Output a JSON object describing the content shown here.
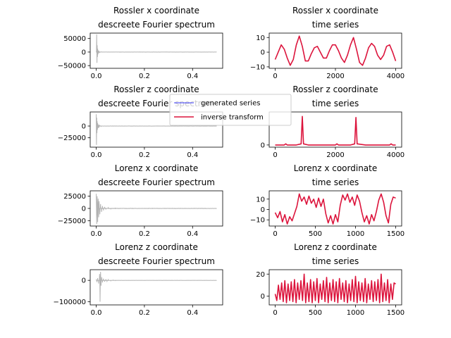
{
  "chart_data": [
    {
      "type": "line",
      "panel": "spectrum",
      "title_lines": [
        "Rossler x coordinate",
        "descreete Fourier spectrum"
      ],
      "xlim": [
        -0.025,
        0.525
      ],
      "ylim": [
        -60000,
        70000
      ],
      "xticks": [
        0.0,
        0.2,
        0.4
      ],
      "xtick_labels": [
        "0.0",
        "0.2",
        "0.4"
      ],
      "yticks": [
        50000,
        0,
        -50000
      ],
      "ytick_labels": [
        "50000",
        "0",
        "−50000"
      ],
      "series": [
        {
          "name": "generated series",
          "color": "#0000ff",
          "spikes": [
            [
              0.0,
              1500
            ],
            [
              0.001,
              -1200
            ],
            [
              0.002,
              65000
            ],
            [
              0.003,
              -40000
            ],
            [
              0.004,
              25000
            ],
            [
              0.005,
              -18000
            ],
            [
              0.006,
              12000
            ],
            [
              0.007,
              -9000
            ],
            [
              0.008,
              6000
            ],
            [
              0.01,
              -4000
            ],
            [
              0.012,
              2500
            ],
            [
              0.015,
              -1500
            ],
            [
              0.02,
              800
            ]
          ],
          "tail_amplitude": 200
        }
      ]
    },
    {
      "type": "line",
      "panel": "timeseries",
      "title_lines": [
        "Rossler x coordinate",
        "time series"
      ],
      "xlim": [
        -200,
        4200
      ],
      "ylim": [
        -11,
        13
      ],
      "xticks": [
        0,
        2000,
        4000
      ],
      "xtick_labels": [
        "0",
        "2000",
        "4000"
      ],
      "yticks": [
        10,
        0,
        -10
      ],
      "ytick_labels": [
        "10",
        "0",
        "−10"
      ],
      "series": [
        {
          "name": "inverse transform",
          "color": "#dc143c",
          "x": [
            0,
            100,
            200,
            300,
            400,
            500,
            600,
            700,
            800,
            900,
            1000,
            1100,
            1200,
            1300,
            1400,
            1500,
            1600,
            1700,
            1800,
            1900,
            2000,
            2100,
            2200,
            2300,
            2400,
            2500,
            2600,
            2700,
            2800,
            2900,
            3000,
            3100,
            3200,
            3300,
            3400,
            3500,
            3600,
            3700,
            3800,
            3900,
            4000
          ],
          "y": [
            -5,
            0,
            5,
            2,
            -4,
            -9,
            -5,
            5,
            11,
            4,
            -6,
            -6,
            -1,
            3,
            4,
            0,
            -4,
            -4,
            1,
            5,
            5,
            1,
            -4,
            -7,
            -2,
            5,
            10,
            2,
            -7,
            -9,
            -4,
            3,
            6,
            4,
            -2,
            -5,
            -2,
            4,
            5,
            0,
            -6
          ]
        }
      ]
    },
    {
      "type": "line",
      "panel": "spectrum",
      "title_lines": [
        "Rossler z coordinate",
        "descreete Fourier spectrum"
      ],
      "xlim": [
        -0.025,
        0.525
      ],
      "ylim": [
        -45000,
        30000
      ],
      "xticks": [
        0.0,
        0.2,
        0.4
      ],
      "xtick_labels": [
        "0.0",
        "0.2",
        "0.4"
      ],
      "yticks": [
        0,
        -25000
      ],
      "ytick_labels": [
        "0",
        "−25000"
      ],
      "series": [
        {
          "name": "generated series",
          "color": "#0000ff",
          "spikes": [
            [
              0.0,
              25000
            ],
            [
              0.001,
              -40000
            ],
            [
              0.002,
              18000
            ],
            [
              0.003,
              -15000
            ],
            [
              0.004,
              10000
            ],
            [
              0.005,
              -8000
            ],
            [
              0.006,
              6000
            ],
            [
              0.008,
              -4000
            ],
            [
              0.01,
              3000
            ],
            [
              0.012,
              -2000
            ],
            [
              0.015,
              1200
            ],
            [
              0.02,
              -700
            ]
          ],
          "tail_amplitude": 150
        }
      ]
    },
    {
      "type": "line",
      "panel": "timeseries",
      "title_lines": [
        "Rossler z coordinate",
        "time series"
      ],
      "xlim": [
        -200,
        4200
      ],
      "ylim": [
        -2,
        30
      ],
      "xticks": [
        0,
        2000,
        4000
      ],
      "xtick_labels": [
        "0",
        "2000",
        "4000"
      ],
      "yticks": [
        0
      ],
      "ytick_labels": [
        "0"
      ],
      "series": [
        {
          "name": "inverse transform",
          "color": "#dc143c",
          "x": [
            0,
            300,
            350,
            400,
            700,
            860,
            900,
            940,
            1100,
            2000,
            2050,
            2100,
            2500,
            2640,
            2680,
            2720,
            3000,
            3800,
            3850,
            3900,
            4000
          ],
          "y": [
            0,
            0,
            1,
            0,
            0,
            1,
            26,
            1,
            0,
            0,
            1,
            0,
            0,
            1,
            25,
            1,
            0,
            0,
            1,
            0,
            0
          ]
        }
      ]
    },
    {
      "type": "line",
      "panel": "spectrum",
      "title_lines": [
        "Lorenz x coordinate",
        "descreete Fourier spectrum"
      ],
      "xlim": [
        -0.025,
        0.525
      ],
      "ylim": [
        -36000,
        36000
      ],
      "xticks": [
        0.0,
        0.2,
        0.4
      ],
      "xtick_labels": [
        "0.0",
        "0.2",
        "0.4"
      ],
      "yticks": [
        25000,
        0,
        -25000
      ],
      "ytick_labels": [
        "25000",
        "0",
        "−25000"
      ],
      "series": [
        {
          "name": "generated series",
          "color": "#0000ff",
          "spikes": [
            [
              0.0,
              30000
            ],
            [
              0.002,
              -32000
            ],
            [
              0.004,
              25000
            ],
            [
              0.006,
              -28000
            ],
            [
              0.008,
              20000
            ],
            [
              0.01,
              -18000
            ],
            [
              0.012,
              15000
            ],
            [
              0.015,
              -12000
            ],
            [
              0.018,
              9000
            ],
            [
              0.022,
              -7000
            ],
            [
              0.026,
              5000
            ],
            [
              0.03,
              -4000
            ],
            [
              0.035,
              3000
            ],
            [
              0.04,
              -2000
            ],
            [
              0.05,
              1500
            ],
            [
              0.06,
              -1000
            ],
            [
              0.08,
              600
            ]
          ],
          "tail_amplitude": 250
        }
      ]
    },
    {
      "type": "line",
      "panel": "timeseries",
      "title_lines": [
        "Lorenz x coordinate",
        "time series"
      ],
      "xlim": [
        -75,
        1575
      ],
      "ylim": [
        -16,
        18
      ],
      "xticks": [
        0,
        500,
        1000,
        1500
      ],
      "xtick_labels": [
        "0",
        "500",
        "1000",
        "1500"
      ],
      "yticks": [
        10,
        0,
        -10
      ],
      "ytick_labels": [
        "10",
        "0",
        "−10"
      ],
      "series": [
        {
          "name": "inverse transform",
          "color": "#dc143c",
          "x": [
            0,
            30,
            60,
            90,
            120,
            150,
            180,
            210,
            240,
            270,
            300,
            330,
            360,
            390,
            420,
            450,
            480,
            510,
            540,
            570,
            600,
            630,
            660,
            690,
            720,
            750,
            780,
            810,
            840,
            870,
            900,
            930,
            960,
            990,
            1020,
            1050,
            1080,
            1110,
            1140,
            1170,
            1200,
            1230,
            1260,
            1290,
            1320,
            1350,
            1380,
            1410,
            1440,
            1470,
            1500
          ],
          "y": [
            -3,
            -8,
            -2,
            -12,
            -5,
            -14,
            -7,
            -11,
            -4,
            3,
            15,
            8,
            12,
            5,
            13,
            6,
            10,
            2,
            11,
            3,
            10,
            -4,
            -13,
            -6,
            -14,
            -5,
            -12,
            4,
            14,
            9,
            15,
            7,
            12,
            4,
            14,
            8,
            -3,
            -12,
            -6,
            -14,
            -5,
            -11,
            -2,
            9,
            15,
            7,
            -6,
            -13,
            5,
            12,
            11
          ]
        }
      ]
    },
    {
      "type": "line",
      "panel": "spectrum",
      "title_lines": [
        "Lorenz z coordinate",
        "descreete Fourier spectrum"
      ],
      "xlim": [
        -0.025,
        0.525
      ],
      "ylim": [
        -115000,
        50000
      ],
      "xticks": [
        0.0,
        0.2,
        0.4
      ],
      "xtick_labels": [
        "0.0",
        "0.2",
        "0.4"
      ],
      "yticks": [
        0,
        -100000
      ],
      "ytick_labels": [
        "0",
        "−100000"
      ],
      "series": [
        {
          "name": "generated series",
          "color": "#0000ff",
          "spikes": [
            [
              0.0,
              5000
            ],
            [
              0.003,
              -8000
            ],
            [
              0.006,
              10000
            ],
            [
              0.01,
              -15000
            ],
            [
              0.014,
              30000
            ],
            [
              0.016,
              -100000
            ],
            [
              0.018,
              40000
            ],
            [
              0.02,
              -25000
            ],
            [
              0.023,
              15000
            ],
            [
              0.026,
              -10000
            ],
            [
              0.03,
              8000
            ],
            [
              0.035,
              -6000
            ],
            [
              0.04,
              5000
            ],
            [
              0.045,
              -4000
            ],
            [
              0.05,
              3000
            ],
            [
              0.06,
              -2000
            ],
            [
              0.07,
              1500
            ],
            [
              0.08,
              -1000
            ]
          ],
          "tail_amplitude": 300
        }
      ]
    },
    {
      "type": "line",
      "panel": "timeseries",
      "title_lines": [
        "Lorenz z coordinate",
        "time series"
      ],
      "xlim": [
        -75,
        1575
      ],
      "ylim": [
        -8,
        24
      ],
      "xticks": [
        0,
        500,
        1000,
        1500
      ],
      "xtick_labels": [
        "0",
        "500",
        "1000",
        "1500"
      ],
      "yticks": [
        20,
        0
      ],
      "ytick_labels": [
        "20",
        "0"
      ],
      "series": [
        {
          "name": "inverse transform",
          "color": "#dc143c",
          "x": [
            0,
            20,
            40,
            60,
            80,
            100,
            120,
            140,
            160,
            180,
            200,
            220,
            240,
            260,
            280,
            300,
            320,
            340,
            360,
            380,
            400,
            420,
            440,
            460,
            480,
            500,
            520,
            540,
            560,
            580,
            600,
            620,
            640,
            660,
            680,
            700,
            720,
            740,
            760,
            780,
            800,
            820,
            840,
            860,
            880,
            900,
            920,
            940,
            960,
            980,
            1000,
            1020,
            1040,
            1060,
            1080,
            1100,
            1120,
            1140,
            1160,
            1180,
            1200,
            1220,
            1240,
            1260,
            1280,
            1300,
            1320,
            1340,
            1360,
            1380,
            1400,
            1420,
            1440,
            1460,
            1480,
            1500
          ],
          "y": [
            2,
            -4,
            10,
            -3,
            12,
            -5,
            14,
            -6,
            11,
            -4,
            13,
            -5,
            15,
            -6,
            12,
            -3,
            14,
            -4,
            20,
            -6,
            12,
            -5,
            15,
            -6,
            13,
            -4,
            16,
            -6,
            11,
            -3,
            14,
            -5,
            17,
            -6,
            12,
            -4,
            15,
            -5,
            13,
            -6,
            16,
            -3,
            12,
            -5,
            14,
            -6,
            11,
            -4,
            15,
            -5,
            18,
            -6,
            13,
            -4,
            12,
            -5,
            16,
            -6,
            11,
            -3,
            14,
            -5,
            13,
            -4,
            15,
            -6,
            20,
            -5,
            12,
            -4,
            15,
            -6,
            11,
            -3,
            12,
            11
          ]
        }
      ]
    }
  ],
  "legend": {
    "items": [
      {
        "label": "generated series",
        "color": "#0000ff",
        "alpha": 0.5
      },
      {
        "label": "inverse transform",
        "color": "#dc143c",
        "alpha": 1
      }
    ]
  }
}
